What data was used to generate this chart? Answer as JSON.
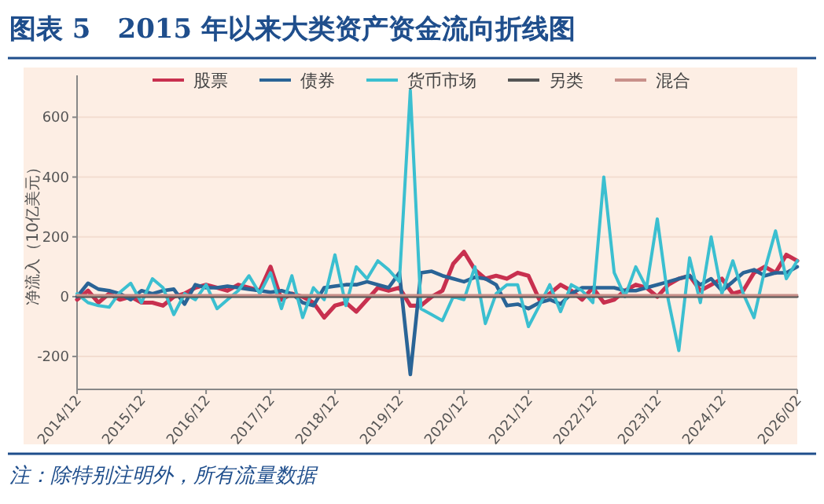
{
  "chart_data": {
    "type": "line",
    "title": "图表 5　2015 年以来大类资产资金流向折线图",
    "ylabel": "净流入（10亿美元）",
    "annotations": [
      "注：除特别注明外，所有流量数据"
    ],
    "x": [
      "2014-12",
      "2015-02",
      "2015-04",
      "2015-06",
      "2015-08",
      "2015-10",
      "2015-12",
      "2016-02",
      "2016-04",
      "2016-06",
      "2016-08",
      "2016-10",
      "2016-12",
      "2017-02",
      "2017-04",
      "2017-06",
      "2017-08",
      "2017-10",
      "2017-12",
      "2018-02",
      "2018-04",
      "2018-06",
      "2018-08",
      "2018-10",
      "2018-12",
      "2019-02",
      "2019-04",
      "2019-06",
      "2019-08",
      "2019-10",
      "2019-12",
      "2020-02",
      "2020-04",
      "2020-06",
      "2020-08",
      "2020-10",
      "2020-12",
      "2021-02",
      "2021-04",
      "2021-06",
      "2021-08",
      "2021-10",
      "2021-12",
      "2022-02",
      "2022-04",
      "2022-06",
      "2022-08",
      "2022-10",
      "2022-12",
      "2023-02",
      "2023-04",
      "2023-06",
      "2023-08",
      "2023-10",
      "2023-12",
      "2024-02",
      "2024-04",
      "2024-06",
      "2024-08",
      "2024-10",
      "2024-12",
      "2025-02",
      "2025-04",
      "2025-06",
      "2025-08",
      "2025-10",
      "2025-12",
      "2026-02"
    ],
    "xlim": [
      "2014-12",
      "2026-02"
    ],
    "xticks": [
      {
        "value": "2014-12",
        "label": "2014/12"
      },
      {
        "value": "2015-12",
        "label": "2015/12"
      },
      {
        "value": "2016-12",
        "label": "2016/12"
      },
      {
        "value": "2017-12",
        "label": "2017/12"
      },
      {
        "value": "2018-12",
        "label": "2018/12"
      },
      {
        "value": "2019-12",
        "label": "2019/12"
      },
      {
        "value": "2020-12",
        "label": "2020/12"
      },
      {
        "value": "2021-12",
        "label": "2021/12"
      },
      {
        "value": "2022-12",
        "label": "2022/12"
      },
      {
        "value": "2023-12",
        "label": "2023/12"
      },
      {
        "value": "2024-12",
        "label": "2024/12"
      },
      {
        "value": "2026-02",
        "label": "2026/02"
      }
    ],
    "ylim": [
      -310,
      740
    ],
    "yticks": [
      -200,
      0,
      200,
      400,
      600
    ],
    "grid": "y",
    "legend": "top",
    "line_style": "solid",
    "series": [
      {
        "name": "股票",
        "color": "#c8304f",
        "values": [
          -10,
          20,
          -20,
          10,
          -10,
          0,
          -20,
          -20,
          -30,
          0,
          10,
          30,
          40,
          30,
          20,
          40,
          30,
          20,
          100,
          -10,
          10,
          0,
          -20,
          -70,
          -30,
          -20,
          -50,
          -10,
          30,
          20,
          30,
          -30,
          -30,
          0,
          20,
          110,
          150,
          90,
          60,
          70,
          60,
          80,
          70,
          -10,
          10,
          40,
          20,
          -10,
          30,
          -20,
          -10,
          20,
          40,
          30,
          0,
          40,
          60,
          70,
          20,
          40,
          60,
          10,
          20,
          80,
          100,
          80,
          140,
          120
        ]
      },
      {
        "name": "债券",
        "color": "#2a6496",
        "values": [
          0,
          45,
          25,
          20,
          10,
          -10,
          20,
          10,
          20,
          25,
          -25,
          40,
          30,
          30,
          35,
          30,
          25,
          20,
          15,
          20,
          10,
          -20,
          -30,
          30,
          35,
          40,
          40,
          50,
          40,
          30,
          80,
          -260,
          80,
          85,
          70,
          60,
          50,
          65,
          60,
          40,
          -30,
          -25,
          -40,
          -20,
          -10,
          -25,
          10,
          30,
          30,
          30,
          30,
          20,
          20,
          30,
          40,
          50,
          60,
          70,
          40,
          60,
          20,
          50,
          80,
          90,
          70,
          80,
          80,
          100
        ]
      },
      {
        "name": "货币市场",
        "color": "#3bbfd0",
        "values": [
          10,
          -20,
          -30,
          -35,
          15,
          45,
          -20,
          60,
          30,
          -60,
          10,
          -10,
          40,
          -40,
          -10,
          20,
          70,
          10,
          80,
          -40,
          70,
          -70,
          30,
          -10,
          140,
          -30,
          100,
          60,
          120,
          90,
          50,
          690,
          -40,
          -60,
          -80,
          0,
          -10,
          100,
          -90,
          10,
          40,
          40,
          -100,
          -30,
          40,
          -50,
          40,
          20,
          -20,
          400,
          80,
          0,
          100,
          30,
          260,
          -10,
          -180,
          130,
          -20,
          200,
          10,
          120,
          10,
          -70,
          90,
          220,
          60,
          120
        ]
      },
      {
        "name": "另类",
        "color": "#555555",
        "values": [
          0,
          0,
          0,
          0,
          0,
          0,
          0,
          0,
          0,
          0,
          0,
          0,
          0,
          0,
          0,
          0,
          0,
          0,
          0,
          0,
          0,
          0,
          0,
          0,
          0,
          0,
          0,
          0,
          0,
          0,
          0,
          0,
          0,
          0,
          0,
          0,
          0,
          0,
          0,
          0,
          0,
          0,
          0,
          0,
          0,
          0,
          0,
          0,
          0,
          0,
          0,
          0,
          0,
          0,
          0,
          0,
          0,
          0,
          0,
          0,
          0,
          0,
          0,
          0,
          0,
          0,
          0,
          0
        ]
      },
      {
        "name": "混合",
        "color": "#c8908a",
        "values": [
          5,
          5,
          5,
          5,
          5,
          5,
          5,
          5,
          5,
          5,
          5,
          5,
          5,
          5,
          5,
          5,
          5,
          5,
          5,
          5,
          5,
          5,
          5,
          5,
          5,
          5,
          5,
          5,
          5,
          5,
          5,
          5,
          5,
          5,
          5,
          5,
          5,
          5,
          5,
          5,
          5,
          5,
          5,
          5,
          5,
          5,
          5,
          5,
          5,
          5,
          5,
          5,
          5,
          5,
          5,
          5,
          5,
          5,
          5,
          5,
          5,
          5,
          5,
          5,
          5,
          5,
          5,
          5
        ]
      }
    ]
  }
}
